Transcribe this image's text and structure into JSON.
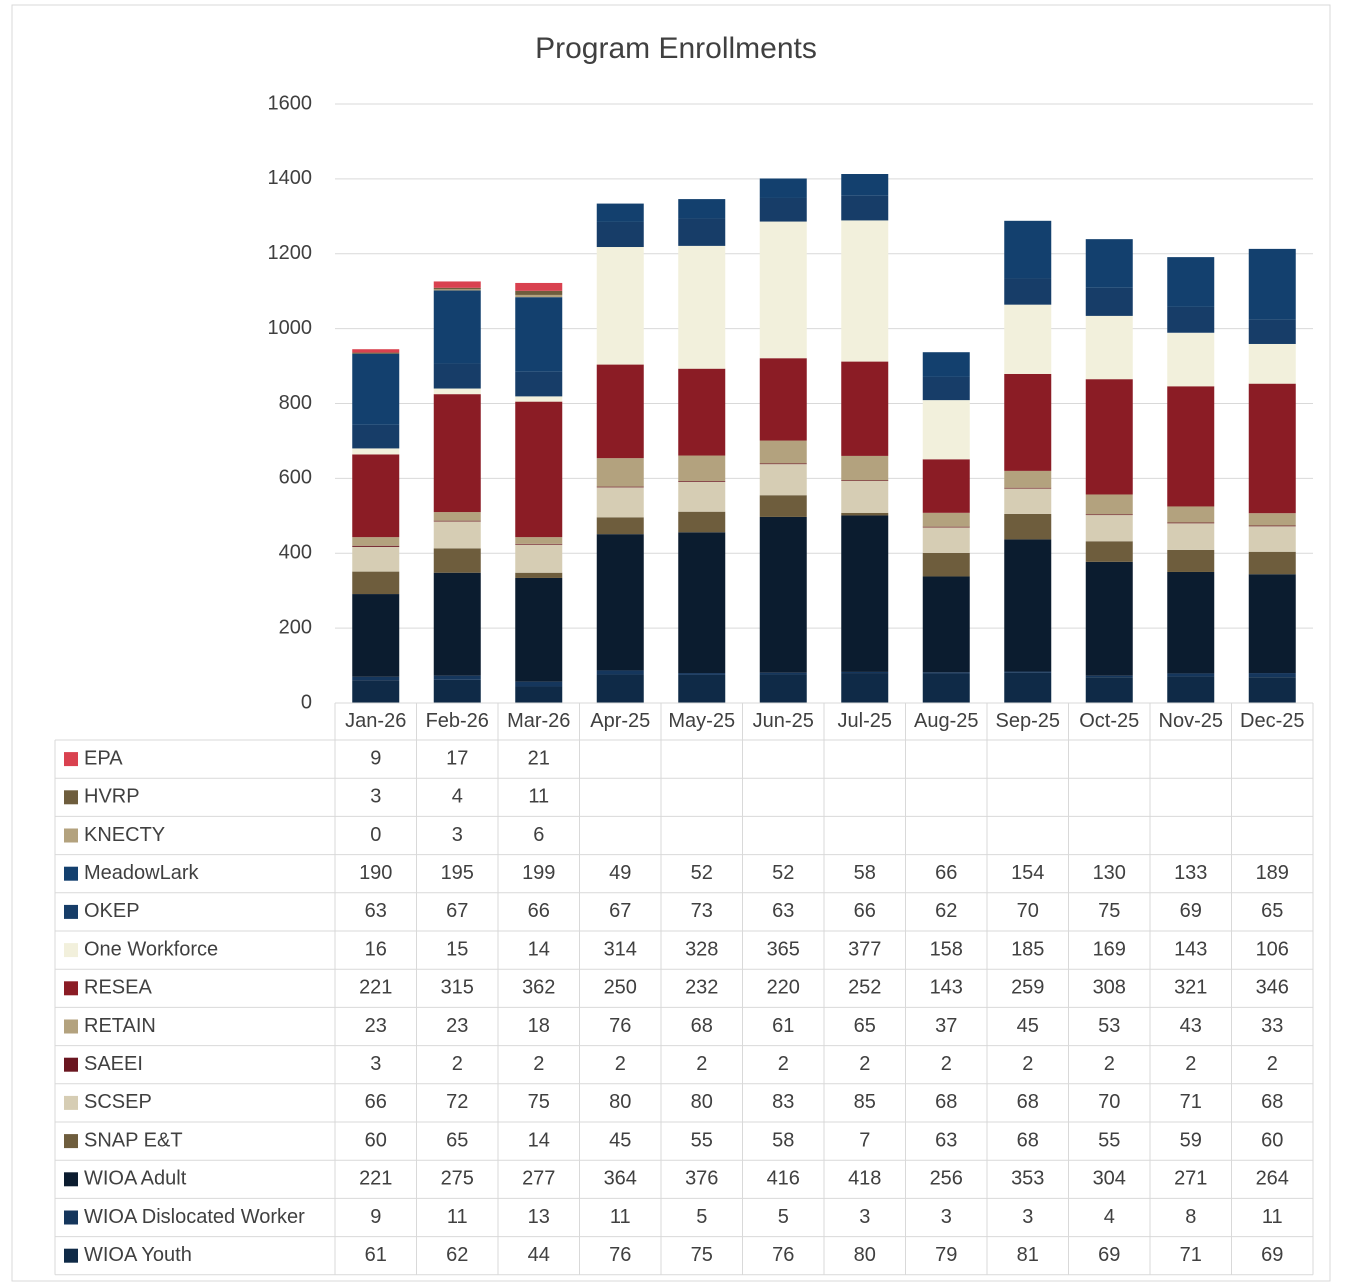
{
  "chart_data": {
    "type": "stacked_bar",
    "title": "Program Enrollments",
    "categories": [
      "Jan-26",
      "Feb-26",
      "Mar-26",
      "Apr-25",
      "May-25",
      "Jun-25",
      "Jul-25",
      "Aug-25",
      "Sep-25",
      "Oct-25",
      "Nov-25",
      "Dec-25"
    ],
    "ylim": [
      0,
      1600
    ],
    "yticks": [
      0,
      200,
      400,
      600,
      800,
      1000,
      1200,
      1400,
      1600
    ],
    "grid": true,
    "legend": "table",
    "series": [
      {
        "name": "EPA",
        "color": "#d9414f",
        "values": [
          9,
          17,
          21,
          null,
          null,
          null,
          null,
          null,
          null,
          null,
          null,
          null
        ]
      },
      {
        "name": "HVRP",
        "color": "#6e5d3d",
        "values": [
          3,
          4,
          11,
          null,
          null,
          null,
          null,
          null,
          null,
          null,
          null,
          null
        ]
      },
      {
        "name": "KNECTY",
        "color": "#b3a27e",
        "values": [
          0,
          3,
          6,
          null,
          null,
          null,
          null,
          null,
          null,
          null,
          null,
          null
        ]
      },
      {
        "name": "MeadowLark",
        "color": "#13406e",
        "values": [
          190,
          195,
          199,
          49,
          52,
          52,
          58,
          66,
          154,
          130,
          133,
          189
        ]
      },
      {
        "name": "OKEP",
        "color": "#173d68",
        "values": [
          63,
          67,
          66,
          67,
          73,
          63,
          66,
          62,
          70,
          75,
          69,
          65
        ]
      },
      {
        "name": "One Workforce",
        "color": "#f2f0dc",
        "values": [
          16,
          15,
          14,
          314,
          328,
          365,
          377,
          158,
          185,
          169,
          143,
          106
        ]
      },
      {
        "name": "RESEA",
        "color": "#8b1c25",
        "values": [
          221,
          315,
          362,
          250,
          232,
          220,
          252,
          143,
          259,
          308,
          321,
          346
        ]
      },
      {
        "name": "RETAIN",
        "color": "#b3a27e",
        "values": [
          23,
          23,
          18,
          76,
          68,
          61,
          65,
          37,
          45,
          53,
          43,
          33
        ]
      },
      {
        "name": "SAEEI",
        "color": "#6a1620",
        "values": [
          3,
          2,
          2,
          2,
          2,
          2,
          2,
          2,
          2,
          2,
          2,
          2
        ]
      },
      {
        "name": "SCSEP",
        "color": "#d6cdb4",
        "values": [
          66,
          72,
          75,
          80,
          80,
          83,
          85,
          68,
          68,
          70,
          71,
          68
        ]
      },
      {
        "name": "SNAP E&T",
        "color": "#6e5d3d",
        "values": [
          60,
          65,
          14,
          45,
          55,
          58,
          7,
          63,
          68,
          55,
          59,
          60
        ]
      },
      {
        "name": "WIOA Adult",
        "color": "#0b1c2f",
        "values": [
          221,
          275,
          277,
          364,
          376,
          416,
          418,
          256,
          353,
          304,
          271,
          264
        ]
      },
      {
        "name": "WIOA Dislocated Worker",
        "color": "#15365c",
        "values": [
          9,
          11,
          13,
          11,
          5,
          5,
          3,
          3,
          3,
          4,
          8,
          11
        ]
      },
      {
        "name": "WIOA Youth",
        "color": "#0f2a47",
        "values": [
          61,
          62,
          44,
          76,
          75,
          76,
          80,
          79,
          81,
          69,
          71,
          69
        ]
      }
    ]
  }
}
